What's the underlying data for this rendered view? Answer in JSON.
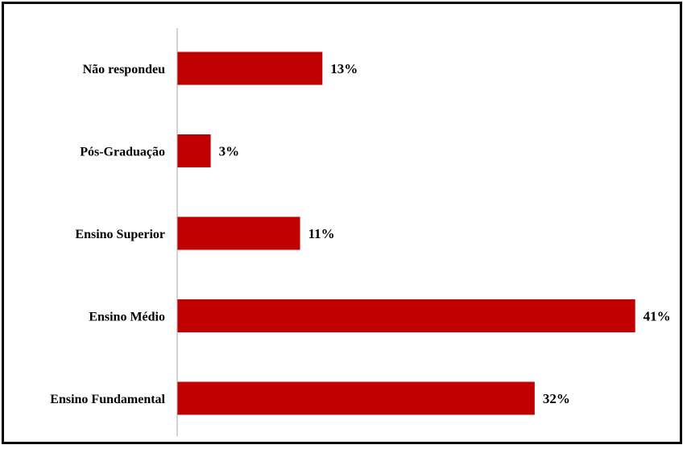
{
  "chart_data": {
    "type": "bar",
    "orientation": "horizontal",
    "categories": [
      "Não respondeu",
      "Pós-Graduação",
      "Ensino Superior",
      "Ensino Médio",
      "Ensino Fundamental"
    ],
    "values": [
      13,
      3,
      11,
      41,
      32
    ],
    "value_labels": [
      "13%",
      "3%",
      "11%",
      "41%",
      "32%"
    ],
    "unit": "%",
    "title": "",
    "xlabel": "",
    "ylabel": "",
    "xlim": [
      0,
      41
    ],
    "grid": false,
    "legend": "none",
    "bar_color": "#C00000",
    "axis_color": "#A6A6A6"
  }
}
